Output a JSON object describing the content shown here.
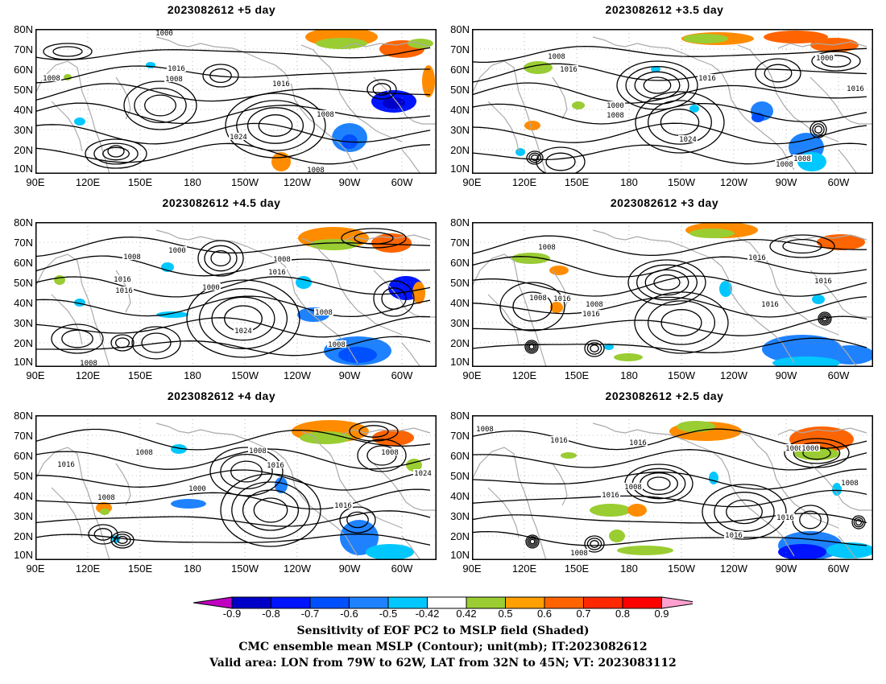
{
  "panels": [
    {
      "id": "p5",
      "title": "2023082612 +5 day",
      "labels": [
        "1000",
        "1008",
        "1016",
        "1008",
        "1016",
        "1024",
        "1008",
        "1008"
      ]
    },
    {
      "id": "p35",
      "title": "2023082612 +3.5 day",
      "labels": [
        "1008",
        "1016",
        "1000",
        "1008",
        "1016",
        "1024",
        "1008",
        "1008",
        "1000",
        "1016"
      ]
    },
    {
      "id": "p45",
      "title": "2023082612 +4.5 day",
      "labels": [
        "1008",
        "1000",
        "1016",
        "1016",
        "1000",
        "1008",
        "1016",
        "1024",
        "1008",
        "1008",
        "1008"
      ]
    },
    {
      "id": "p3",
      "title": "2023082612 +3 day",
      "labels": [
        "1008",
        "1008",
        "1016",
        "1008",
        "1016",
        "1016",
        "1016",
        "1016"
      ]
    },
    {
      "id": "p4",
      "title": "2023082612 +4 day",
      "labels": [
        "1008",
        "1016",
        "1008",
        "1000",
        "1008",
        "1016",
        "1016",
        "1008",
        "1024"
      ]
    },
    {
      "id": "p25",
      "title": "2023082612 +2.5 day",
      "labels": [
        "1008",
        "1016",
        "1016",
        "1008",
        "1016",
        "1008",
        "1016",
        "1000",
        "1008",
        "1016",
        "1008"
      ]
    }
  ],
  "axes": {
    "y_labels": [
      "80N",
      "70N",
      "60N",
      "50N",
      "40N",
      "30N",
      "20N",
      "10N"
    ],
    "x_labels": [
      "90E",
      "120E",
      "150E",
      "180",
      "150W",
      "120W",
      "90W",
      "60W"
    ]
  },
  "colorbar": {
    "ticks": [
      "-0.9",
      "-0.8",
      "-0.7",
      "-0.6",
      "-0.5",
      "-0.42",
      "0.42",
      "0.5",
      "0.6",
      "0.7",
      "0.8",
      "0.9"
    ],
    "colors": [
      "#c000c0",
      "#0000c8",
      "#0014ff",
      "#0050ff",
      "#1e82ff",
      "#00c8ff",
      "#ffffff",
      "#9acd32",
      "#ffa000",
      "#ff6400",
      "#ff2800",
      "#ff0000",
      "#ffa0d0"
    ]
  },
  "captions": {
    "line1": "Sensitivity of EOF PC2 to MSLP field (Shaded)",
    "line2": "CMC ensemble mean MSLP (Contour); unit(mb); IT:2023082612",
    "line3": "Valid area: LON from 79W to 62W, LAT from 32N to 45N; VT: 2023083112"
  }
}
